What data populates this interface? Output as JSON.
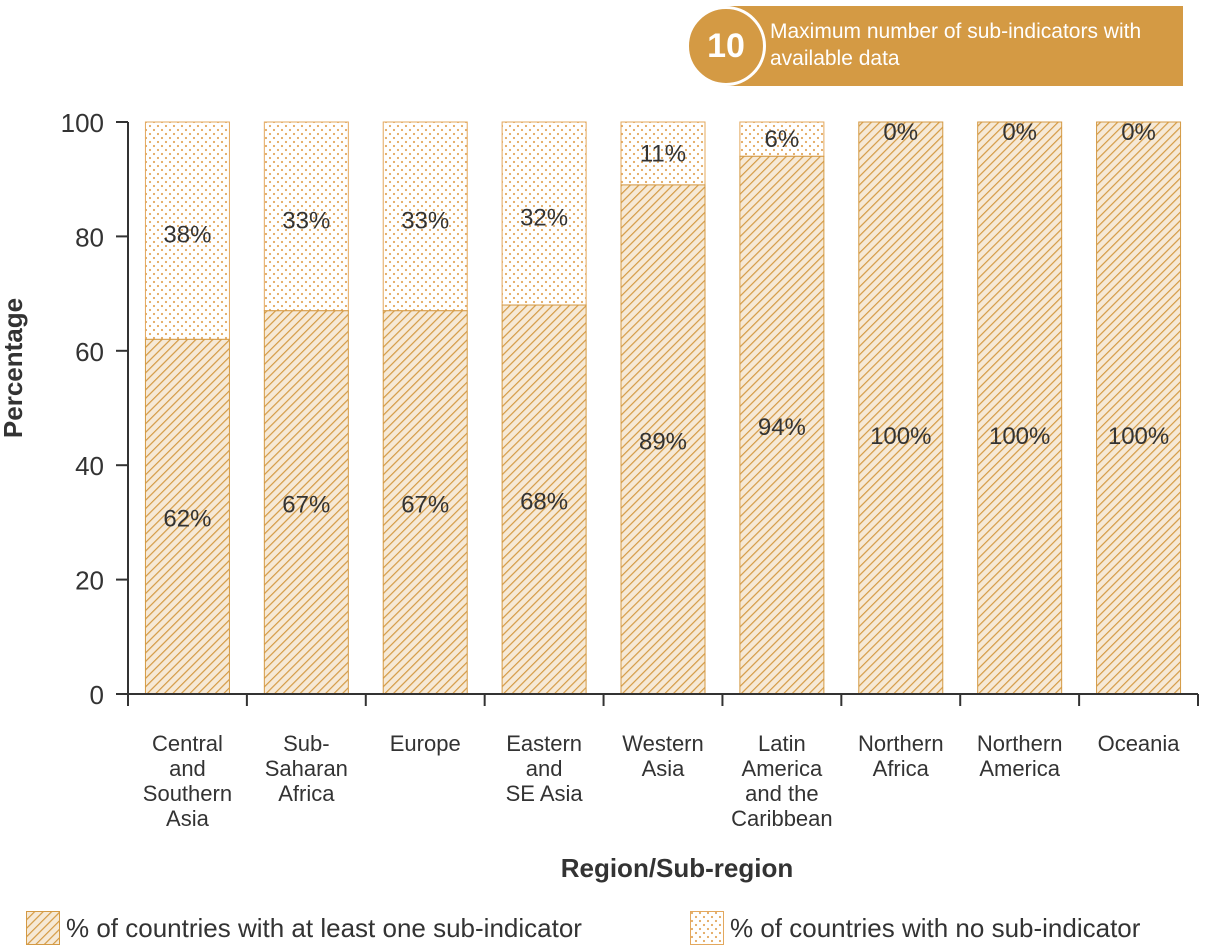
{
  "badge": {
    "number": "10",
    "text": "Maximum number of sub-indicators with available data"
  },
  "colors": {
    "hatch": "#d49a44",
    "hatch_bg": "#f6e9d6",
    "dots": "#e3a85e",
    "badge": "#d49a44",
    "axis": "#333333"
  },
  "chart_data": {
    "type": "bar",
    "stacked": true,
    "xlabel": "Region/Sub-region",
    "ylabel": "Percentage",
    "ylim": [
      0,
      100
    ],
    "yticks": [
      0,
      20,
      40,
      60,
      80,
      100
    ],
    "grid": false,
    "legend_position": "bottom",
    "categories": [
      [
        "Central",
        "and",
        "Southern",
        "Asia"
      ],
      [
        "Sub-",
        "Saharan",
        "Africa"
      ],
      [
        "Europe"
      ],
      [
        "Eastern",
        "and",
        "SE Asia"
      ],
      [
        "Western",
        "Asia"
      ],
      [
        "Latin",
        "America",
        "and the",
        "Caribbean"
      ],
      [
        "Northern",
        "Africa"
      ],
      [
        "Northern",
        "America"
      ],
      [
        "Oceania"
      ]
    ],
    "series": [
      {
        "name": "% of countries with at least one sub-indicator",
        "pattern": "hatch",
        "values": [
          62,
          67,
          67,
          68,
          89,
          94,
          100,
          100,
          100
        ],
        "labels": [
          "62%",
          "67%",
          "67%",
          "68%",
          "89%",
          "94%",
          "100%",
          "100%",
          "100%"
        ]
      },
      {
        "name": "% of countries with no sub-indicator",
        "pattern": "dots",
        "values": [
          38,
          33,
          33,
          32,
          11,
          6,
          0,
          0,
          0
        ],
        "labels": [
          "38%",
          "33%",
          "33%",
          "32%",
          "11%",
          "6%",
          "0%",
          "0%",
          "0%"
        ]
      }
    ]
  }
}
